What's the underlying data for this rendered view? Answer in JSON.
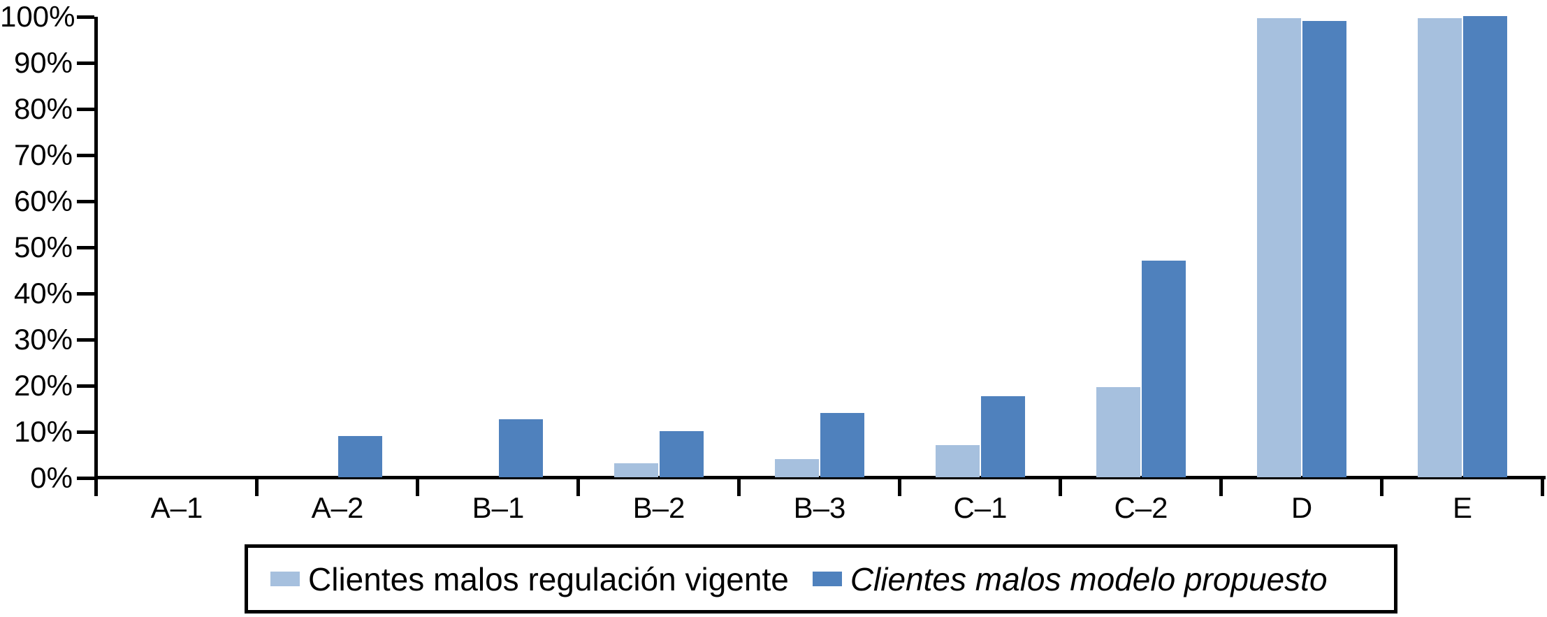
{
  "chart_data": {
    "type": "bar",
    "title": "",
    "xlabel": "",
    "ylabel": "",
    "grid": false,
    "legend_position": "bottom",
    "categories": [
      "A–1",
      "A–2",
      "B–1",
      "B–2",
      "B–3",
      "C–1",
      "C–2",
      "D",
      "E"
    ],
    "series": [
      {
        "name": "Clientes malos regulación vigente",
        "color": "#A6C0DE",
        "italic": false,
        "values": [
          0,
          0,
          0,
          3,
          4,
          7,
          19.5,
          99.5,
          99.5
        ]
      },
      {
        "name": "Clientes malos modelo propuesto",
        "color": "#4F81BD",
        "italic": true,
        "values": [
          0,
          9,
          12.5,
          10,
          14,
          17.5,
          47,
          99,
          100
        ]
      }
    ],
    "y_axis": {
      "min": 0,
      "max": 100,
      "step": 10,
      "tick_labels": [
        "0%",
        "10%",
        "20%",
        "30%",
        "40%",
        "50%",
        "60%",
        "70%",
        "80%",
        "90%",
        "100%"
      ]
    }
  },
  "colors": {
    "axis": "#000000",
    "text": "#000000",
    "background": "#FFFFFF",
    "series_light": "#A6C0DE",
    "series_dark": "#4F81BD"
  }
}
